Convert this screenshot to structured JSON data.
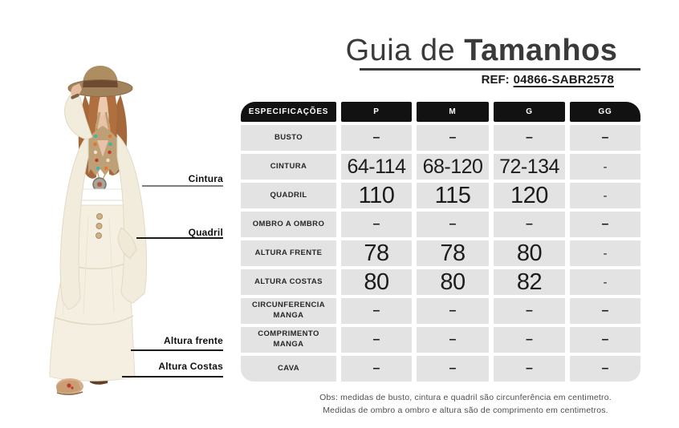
{
  "header": {
    "title_regular": "Guia de ",
    "title_bold": "Tamanhos",
    "ref_label": "REF:",
    "ref_value": "04866-SABR2578"
  },
  "figure": {
    "labels": [
      "Cintura",
      "Quadril",
      "Altura frente",
      "Altura Costas"
    ]
  },
  "table": {
    "columns": [
      "ESPECIFICAÇÕES",
      "P",
      "M",
      "G",
      "GG"
    ],
    "rows": [
      {
        "label": "BUSTO",
        "values": [
          "–",
          "–",
          "–",
          "–"
        ]
      },
      {
        "label": "CINTURA",
        "values": [
          "64-114",
          "68-120",
          "72-134",
          "-"
        ]
      },
      {
        "label": "QUADRIL",
        "values": [
          "110",
          "115",
          "120",
          "-"
        ]
      },
      {
        "label": "OMBRO A OMBRO",
        "values": [
          "–",
          "–",
          "–",
          "–"
        ]
      },
      {
        "label": "ALTURA FRENTE",
        "values": [
          "78",
          "78",
          "80",
          "-"
        ]
      },
      {
        "label": "ALTURA COSTAS",
        "values": [
          "80",
          "80",
          "82",
          "-"
        ]
      },
      {
        "label": "CIRCUNFERENCIA MANGA",
        "values": [
          "–",
          "–",
          "–",
          "–"
        ]
      },
      {
        "label": "COMPRIMENTO MANGA",
        "values": [
          "–",
          "–",
          "–",
          "–"
        ]
      },
      {
        "label": "CAVA",
        "values": [
          "–",
          "–",
          "–",
          "–"
        ]
      }
    ]
  },
  "note": {
    "line1": "Obs: medidas de busto, cintura e quadril são circunferência em centimetro.",
    "line2": "Medidas de ombro a ombro e altura são de comprimento em centimetros."
  },
  "colors": {
    "header_bg": "#121212",
    "cell_bg": "#e3e3e3",
    "title_color": "#3a3a3a",
    "line_gray": "#7d7d7d",
    "line_dark": "#1c1c1c"
  }
}
